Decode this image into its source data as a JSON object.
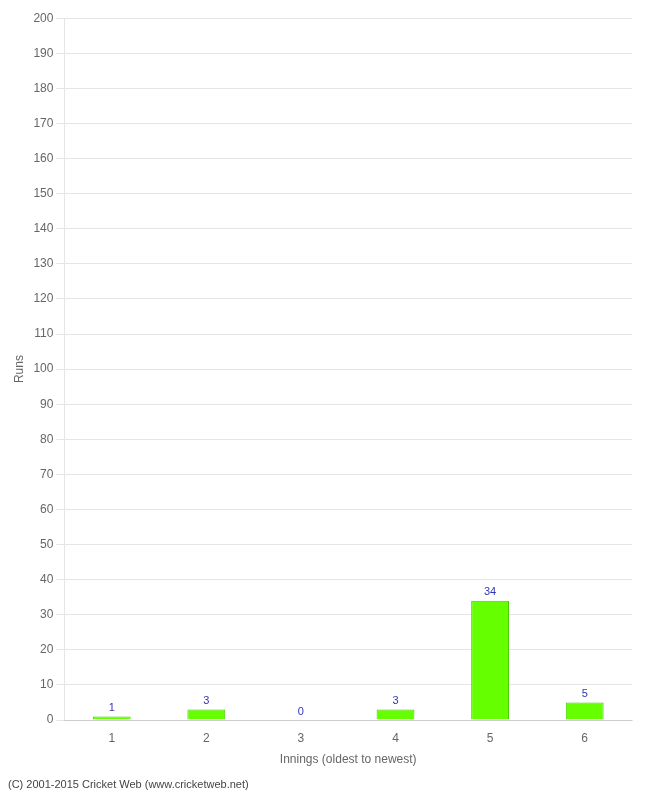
{
  "chart_data": {
    "type": "bar",
    "categories": [
      "1",
      "2",
      "3",
      "4",
      "5",
      "6"
    ],
    "values": [
      1,
      3,
      0,
      3,
      34,
      5
    ],
    "color": "#66ff00",
    "xlabel": "Innings (oldest to newest)",
    "ylabel": "Runs",
    "ylim": [
      0,
      200
    ],
    "yticks": [
      0,
      10,
      20,
      30,
      40,
      50,
      60,
      70,
      80,
      90,
      100,
      110,
      120,
      130,
      140,
      150,
      160,
      170,
      180,
      190,
      200
    ],
    "grid": true,
    "data_labels": true,
    "annotations": [
      "(C) 2001-2015 Cricket Web (www.cricketweb.net)"
    ]
  }
}
